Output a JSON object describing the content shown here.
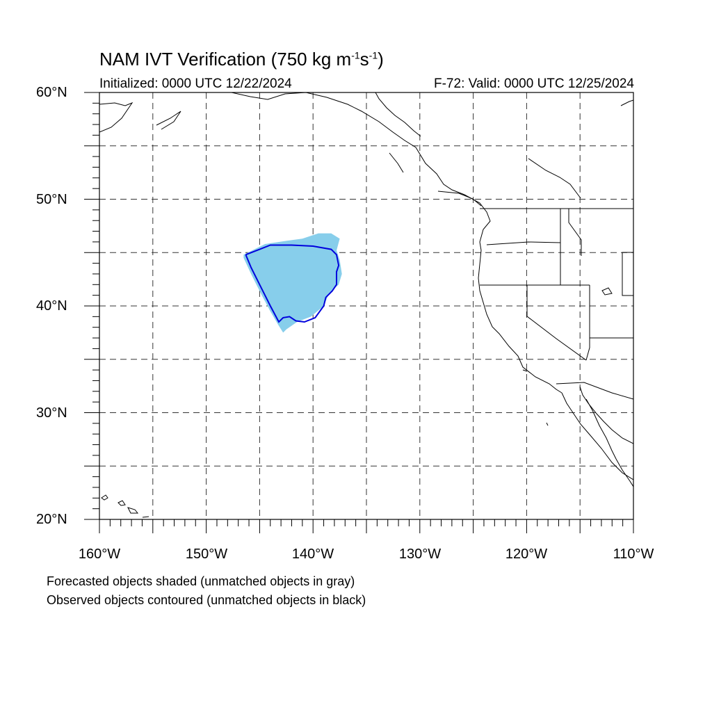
{
  "title": {
    "text": "NAM IVT Verification (750 kg m",
    "sup1": "-1",
    "mid": "s",
    "sup2": "-1",
    "end": ")"
  },
  "subtitle_left": "Initialized: 0000 UTC 12/22/2024",
  "subtitle_right": "F-72: Valid: 0000 UTC 12/25/2024",
  "lat_labels": [
    "60°N",
    "50°N",
    "40°N",
    "30°N",
    "20°N"
  ],
  "lon_labels": [
    "160°W",
    "150°W",
    "140°W",
    "130°W",
    "120°W",
    "110°W"
  ],
  "caption_1": "Forecasted objects shaded (unmatched objects in gray)",
  "caption_2": "Observed objects contoured (unmatched objects in black)",
  "map": {
    "lon_range": [
      -160,
      -110
    ],
    "lat_range": [
      20,
      60
    ],
    "grid_step_deg": 5,
    "forecast_object_color": "#87ceeb",
    "observed_contour_color": "#0000dd",
    "forecast_object": [
      [
        -146.5,
        44.8
      ],
      [
        -144.5,
        45.8
      ],
      [
        -142.5,
        46.1
      ],
      [
        -141,
        46.3
      ],
      [
        -139.5,
        46.8
      ],
      [
        -138.3,
        46.8
      ],
      [
        -137.5,
        46.3
      ],
      [
        -137.8,
        45.2
      ],
      [
        -137.5,
        44.3
      ],
      [
        -137.3,
        43
      ],
      [
        -137.6,
        42
      ],
      [
        -138.5,
        41.2
      ],
      [
        -139,
        40
      ],
      [
        -140.2,
        39
      ],
      [
        -141.5,
        38.5
      ],
      [
        -142.5,
        37.8
      ],
      [
        -142.8,
        37.5
      ],
      [
        -143.3,
        38.3
      ],
      [
        -144,
        39.5
      ],
      [
        -144.8,
        41
      ],
      [
        -145.8,
        43
      ],
      [
        -146.5,
        44.5
      ]
    ],
    "observed_object": [
      [
        -146.3,
        44.8
      ],
      [
        -145,
        45.3
      ],
      [
        -144,
        45.7
      ],
      [
        -142,
        45.7
      ],
      [
        -140,
        45.6
      ],
      [
        -138.3,
        45.3
      ],
      [
        -137.8,
        44.8
      ],
      [
        -137.6,
        43.8
      ],
      [
        -137.8,
        43.2
      ],
      [
        -137.8,
        42
      ],
      [
        -138.2,
        41.4
      ],
      [
        -138.8,
        40.8
      ],
      [
        -139,
        40
      ],
      [
        -139.8,
        38.9
      ],
      [
        -140.8,
        38.5
      ],
      [
        -141.6,
        38.6
      ],
      [
        -142.2,
        39
      ],
      [
        -142.8,
        38.9
      ],
      [
        -143.2,
        38.5
      ],
      [
        -144,
        40
      ],
      [
        -145,
        42
      ],
      [
        -145.8,
        43.6
      ],
      [
        -146.3,
        44.8
      ]
    ]
  }
}
